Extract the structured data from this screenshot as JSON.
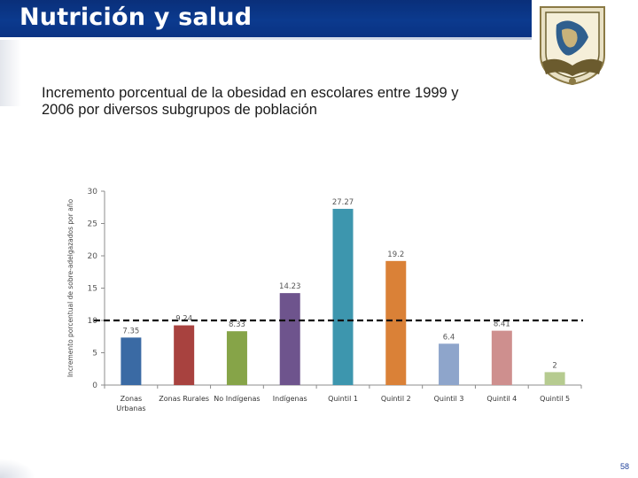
{
  "slide": {
    "title": "Nutrición y salud",
    "subtitle_line1": "Incremento porcentual de la obesidad en escolares entre 1999 y",
    "subtitle_line2": "2006 por diversos subgrupos de población",
    "page_number": "58"
  },
  "logo": {
    "name": "UNAM university seal"
  },
  "chart_data": {
    "type": "bar",
    "title": "Incremento porcentual de la obesidad en escolares entre 1999 y 2006 por diversos subgrupos de población",
    "ylabel": "Incremento porcentual de sobre-adelgazados por año",
    "xlabel": "",
    "ylim": [
      0,
      30
    ],
    "yticks": [
      0,
      5,
      10,
      15,
      20,
      25,
      30
    ],
    "reference_line": {
      "value": 10,
      "style": "dashed"
    },
    "categories": [
      "Zonas Urbanas",
      "Zonas Rurales",
      "No Indígenas",
      "Indígenas",
      "Quintil 1",
      "Quintil 2",
      "Quintil 3",
      "Quintil 4",
      "Quintil 5"
    ],
    "values": [
      7.35,
      9.24,
      8.33,
      14.23,
      27.27,
      19.2,
      6.4,
      8.41,
      2
    ],
    "value_labels": [
      "7.35",
      "9.24",
      "8.33",
      "14.23",
      "27.27",
      "19.2",
      "6.4",
      "8.41",
      "2"
    ],
    "colors": [
      "#3a6aa4",
      "#a8423f",
      "#86a448",
      "#6e548d",
      "#3d96ae",
      "#da8137",
      "#8ea5cb",
      "#ce8f8e",
      "#b6cb90"
    ],
    "grid": false
  }
}
